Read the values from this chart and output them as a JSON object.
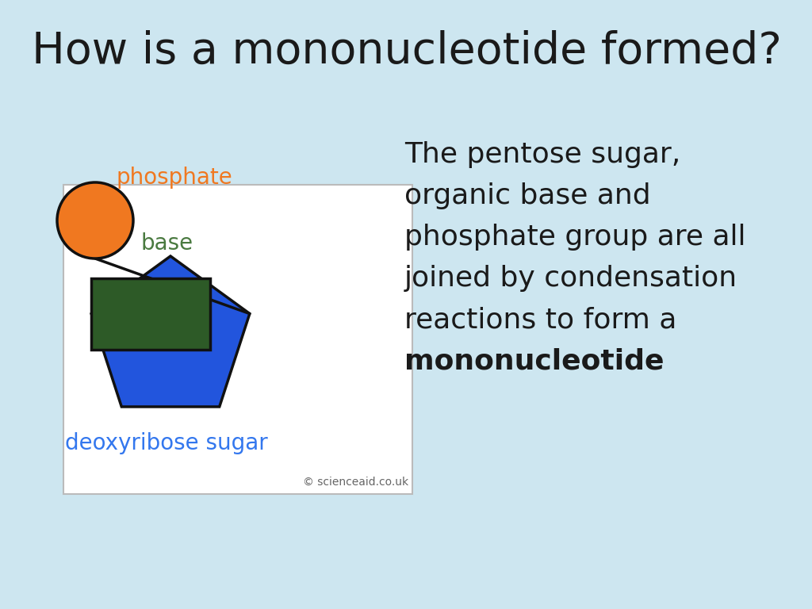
{
  "title": "How is a mononucleotide formed?",
  "title_fontsize": 40,
  "title_color": "#1a1a1a",
  "slide_bg": "#cde6f0",
  "diagram_bg": "#ffffff",
  "phosphate_color": "#f07820",
  "phosphate_label": "phosphate",
  "phosphate_label_color": "#f07820",
  "phosphate_label_fontsize": 20,
  "sugar_color": "#2255dd",
  "sugar_label": "deoxyribose sugar",
  "sugar_label_color": "#3377ee",
  "sugar_label_fontsize": 20,
  "base_color": "#2d5a27",
  "base_label": "base",
  "base_label_color": "#4a7a40",
  "base_label_fontsize": 20,
  "copyright_text": "© scienceaid.co.uk",
  "copyright_color": "#666666",
  "copyright_fontsize": 10,
  "body_lines": [
    "The pentose sugar,",
    "organic base and",
    "phosphate group are all",
    "joined by condensation",
    "reactions to form a"
  ],
  "body_text_bold": "mononucleotide",
  "body_text_color": "#1a1a1a",
  "body_fontsize": 26
}
